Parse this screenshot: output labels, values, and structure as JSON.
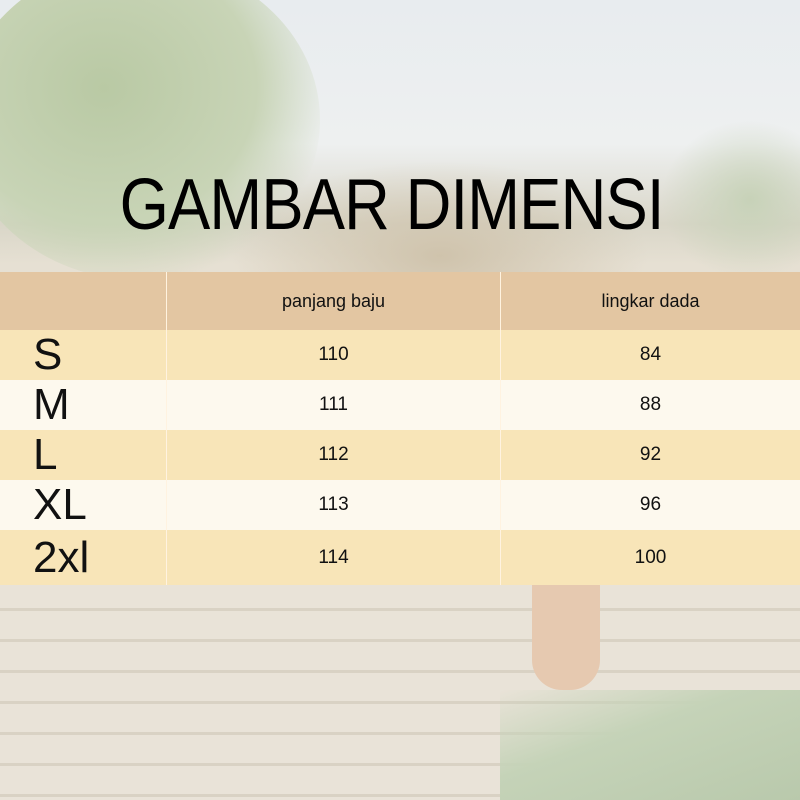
{
  "title": "GAMBAR DIMENSI",
  "table": {
    "headers": [
      "",
      "panjang baju",
      "lingkar dada"
    ],
    "rows": [
      {
        "size": "S",
        "panjang_baju": "110",
        "lingkar_dada": "84"
      },
      {
        "size": "M",
        "panjang_baju": "111",
        "lingkar_dada": "88"
      },
      {
        "size": "L",
        "panjang_baju": "112",
        "lingkar_dada": "92"
      },
      {
        "size": "XL",
        "panjang_baju": "113",
        "lingkar_dada": "96"
      },
      {
        "size": "2xl",
        "panjang_baju": "114",
        "lingkar_dada": "100"
      }
    ]
  },
  "colors": {
    "header": "#e3c6a2",
    "row_odd": "#f8e5b8",
    "row_even": "#fdf9ee"
  }
}
